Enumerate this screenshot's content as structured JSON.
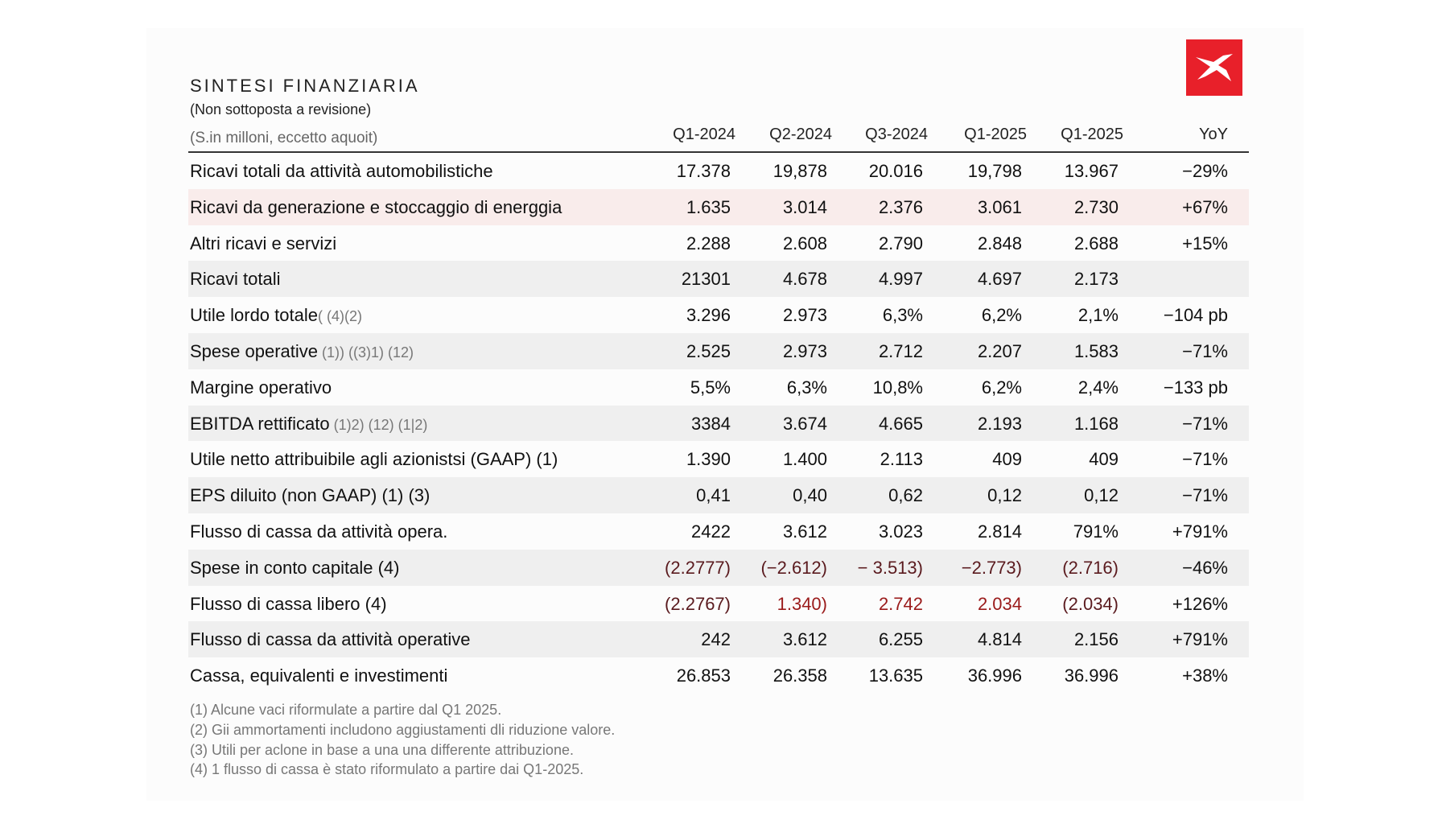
{
  "header": {
    "title": "SINTESI FINANZIARIA",
    "subtitle": "(Non sottoposta a revisione)",
    "units": "(S.in milloni, eccetto aquoit)",
    "logo": "x-logo"
  },
  "columns": [
    "Q1-2024",
    "Q2-2024",
    "Q3-2024",
    "Q1-2025",
    "Q1-2025",
    "YoY"
  ],
  "rows": [
    {
      "label": "Ricavi totali da attività automobilistiche",
      "note": "",
      "values": [
        "17.378",
        "19,878",
        "20.016",
        "19,798",
        "13.967",
        "−29%"
      ]
    },
    {
      "label": "Ricavi da generazione e stoccaggio  di energgia",
      "note": "",
      "values": [
        "1.635",
        "3.014",
        "2.376",
        "3.061",
        "2.730",
        "+67%"
      ]
    },
    {
      "label": "Altri ricavi e servizi",
      "note": "",
      "values": [
        "2.288",
        "2.608",
        "2.790",
        "2.848",
        "2.688",
        "+15%"
      ]
    },
    {
      "label": "Ricavi totali",
      "note": "",
      "values": [
        "21301",
        "4.678",
        "4.997",
        "4.697",
        "2.173",
        ""
      ]
    },
    {
      "label": "Utile lordo totale",
      "note": "( (4)(2)",
      "values": [
        "3.296",
        "2.973",
        "6,3%",
        "6,2%",
        "2,1%",
        "−104 pb"
      ]
    },
    {
      "label": "Spese operative",
      "note": " (1)) ((3)1) (12)",
      "values": [
        "2.525",
        "2.973",
        "2.712",
        "2.207",
        "1.583",
        "−71%"
      ]
    },
    {
      "label": "Margine operativo",
      "note": "",
      "values": [
        "5,5%",
        "6,3%",
        "10,8%",
        "6,2%",
        "2,4%",
        "−133 pb"
      ]
    },
    {
      "label": "EBITDA rettificato",
      "note": " (1)2) (12) (1|2)",
      "values": [
        "3384",
        "3.674",
        "4.665",
        "2.193",
        "1.168",
        "−71%"
      ]
    },
    {
      "label": "Utile netto attribuibile agli azionistsi (GAAP) (1)",
      "note": "",
      "values": [
        "1.390",
        "1.400",
        "2.113",
        "409",
        "409",
        "−71%"
      ]
    },
    {
      "label": "EPS diluito (non GAAP) (1) (3)",
      "note": "",
      "values": [
        "0,41",
        "0,40",
        "0,62",
        "0,12",
        "0,12",
        "−71%"
      ]
    },
    {
      "label": "Flusso di cassa da attività opera.",
      "note": "",
      "values": [
        "2422",
        "3.612",
        "3.023",
        "2.814",
        "791%",
        "+791%"
      ]
    },
    {
      "label": "Spese in conto capitale (4)",
      "note": "",
      "values": [
        "(2.2777)",
        "(−2.612)",
        "− 3.513)",
        "−2.773)",
        "(2.716)",
        "−46%"
      ]
    },
    {
      "label": "Flusso di cassa libero (4)",
      "note": "",
      "values": [
        "(2.2767)",
        "1.340)",
        "2.742",
        "2.034",
        "(2.034)",
        "+126%"
      ]
    },
    {
      "label": "Flusso di cassa da attività operative",
      "note": "",
      "values": [
        "242",
        "3.612",
        "6.255",
        "4.814",
        "2.156",
        "+791%"
      ]
    },
    {
      "label": "Cassa, equivalenti e investimenti",
      "note": "",
      "values": [
        "26.853",
        "26.358",
        "13.635",
        "36.996",
        "36.996",
        "+38%"
      ]
    }
  ],
  "footnotes": [
    "(1) Alcune vaci riformulate a partire dal Q1 2025.",
    "(2) Gii ammortamenti includono aggiustamenti dli riduzione valore.",
    "(3) Utili per aclone in base a una una differente attribuzione.",
    "(4) 1 flusso di cassa è stato riformulato a partire dai Q1-2025."
  ],
  "colors": {
    "logo": "#e8202a",
    "negative_dark": "#5a1a1e",
    "negative_red": "#9a1a1a"
  }
}
